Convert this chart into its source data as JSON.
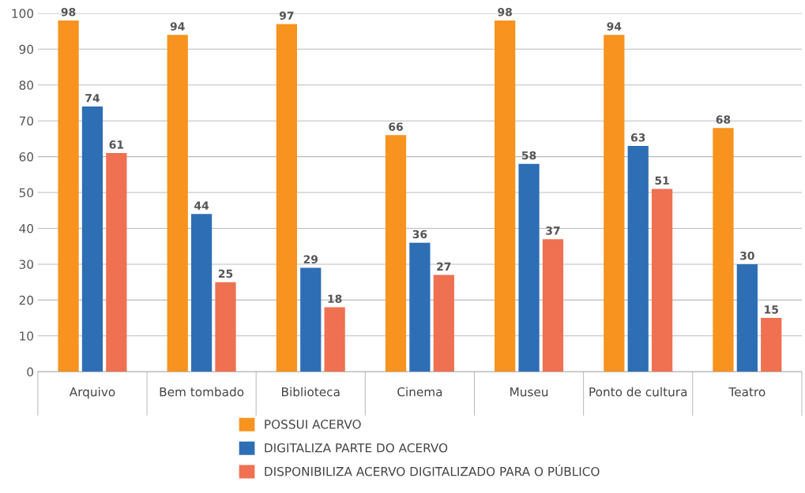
{
  "chart_data": {
    "type": "bar",
    "categories": [
      "Arquivo",
      "Bem tombado",
      "Biblioteca",
      "Cinema",
      "Museu",
      "Ponto de cultura",
      "Teatro"
    ],
    "series": [
      {
        "name": "POSSUI ACERVO",
        "color": "#f7931e",
        "values": [
          98,
          94,
          97,
          66,
          98,
          94,
          68
        ]
      },
      {
        "name": "DIGITALIZA PARTE DO ACERVO",
        "color": "#2e6eb5",
        "values": [
          74,
          44,
          29,
          36,
          58,
          63,
          30
        ]
      },
      {
        "name": "DISPONIBILIZA ACERVO DIGITALIZADO PARA O PÚBLICO",
        "color": "#f07052",
        "values": [
          61,
          25,
          18,
          27,
          37,
          51,
          15
        ]
      }
    ],
    "ylim": [
      0,
      100
    ],
    "yticks": [
      0,
      10,
      20,
      30,
      40,
      50,
      60,
      70,
      80,
      90,
      100
    ],
    "grid": "y",
    "legend": "bottom",
    "data_labels": true
  }
}
